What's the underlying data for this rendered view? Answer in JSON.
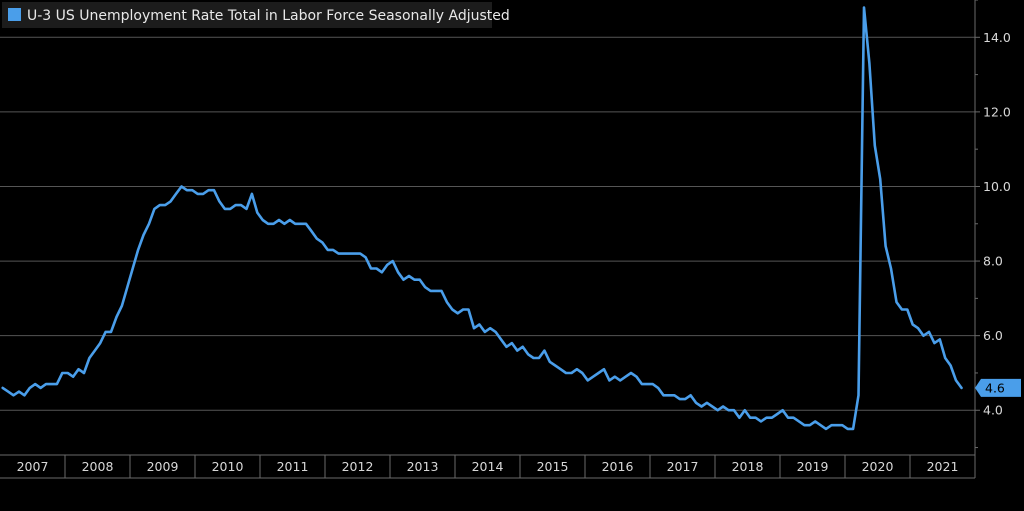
{
  "chart_data": {
    "type": "line",
    "title": "",
    "xlabel": "",
    "ylabel": "",
    "ylim": [
      2.8,
      15.0
    ],
    "xlim": [
      "2007-01",
      "2021-12"
    ],
    "grid": true,
    "legend_position": "top-left",
    "line_color": "#4a9eea",
    "background_color": "#000000",
    "x_tick_labels": [
      "2007",
      "2008",
      "2009",
      "2010",
      "2011",
      "2012",
      "2013",
      "2014",
      "2015",
      "2016",
      "2017",
      "2018",
      "2019",
      "2020",
      "2021"
    ],
    "y_tick_labels": [
      "4.0",
      "6.0",
      "8.0",
      "10.0",
      "12.0",
      "14.0"
    ],
    "y_tick_values": [
      4.0,
      6.0,
      8.0,
      10.0,
      12.0,
      14.0
    ],
    "last_value_label": "4.6",
    "series": [
      {
        "name": "U-3 US Unemployment Rate Total in Labor Force Seasonally Adjusted",
        "x": [
          "2007-01",
          "2007-02",
          "2007-03",
          "2007-04",
          "2007-05",
          "2007-06",
          "2007-07",
          "2007-08",
          "2007-09",
          "2007-10",
          "2007-11",
          "2007-12",
          "2008-01",
          "2008-02",
          "2008-03",
          "2008-04",
          "2008-05",
          "2008-06",
          "2008-07",
          "2008-08",
          "2008-09",
          "2008-10",
          "2008-11",
          "2008-12",
          "2009-01",
          "2009-02",
          "2009-03",
          "2009-04",
          "2009-05",
          "2009-06",
          "2009-07",
          "2009-08",
          "2009-09",
          "2009-10",
          "2009-11",
          "2009-12",
          "2010-01",
          "2010-02",
          "2010-03",
          "2010-04",
          "2010-05",
          "2010-06",
          "2010-07",
          "2010-08",
          "2010-09",
          "2010-10",
          "2010-11",
          "2010-12",
          "2011-01",
          "2011-02",
          "2011-03",
          "2011-04",
          "2011-05",
          "2011-06",
          "2011-07",
          "2011-08",
          "2011-09",
          "2011-10",
          "2011-11",
          "2011-12",
          "2012-01",
          "2012-02",
          "2012-03",
          "2012-04",
          "2012-05",
          "2012-06",
          "2012-07",
          "2012-08",
          "2012-09",
          "2012-10",
          "2012-11",
          "2012-12",
          "2013-01",
          "2013-02",
          "2013-03",
          "2013-04",
          "2013-05",
          "2013-06",
          "2013-07",
          "2013-08",
          "2013-09",
          "2013-10",
          "2013-11",
          "2013-12",
          "2014-01",
          "2014-02",
          "2014-03",
          "2014-04",
          "2014-05",
          "2014-06",
          "2014-07",
          "2014-08",
          "2014-09",
          "2014-10",
          "2014-11",
          "2014-12",
          "2015-01",
          "2015-02",
          "2015-03",
          "2015-04",
          "2015-05",
          "2015-06",
          "2015-07",
          "2015-08",
          "2015-09",
          "2015-10",
          "2015-11",
          "2015-12",
          "2016-01",
          "2016-02",
          "2016-03",
          "2016-04",
          "2016-05",
          "2016-06",
          "2016-07",
          "2016-08",
          "2016-09",
          "2016-10",
          "2016-11",
          "2016-12",
          "2017-01",
          "2017-02",
          "2017-03",
          "2017-04",
          "2017-05",
          "2017-06",
          "2017-07",
          "2017-08",
          "2017-09",
          "2017-10",
          "2017-11",
          "2017-12",
          "2018-01",
          "2018-02",
          "2018-03",
          "2018-04",
          "2018-05",
          "2018-06",
          "2018-07",
          "2018-08",
          "2018-09",
          "2018-10",
          "2018-11",
          "2018-12",
          "2019-01",
          "2019-02",
          "2019-03",
          "2019-04",
          "2019-05",
          "2019-06",
          "2019-07",
          "2019-08",
          "2019-09",
          "2019-10",
          "2019-11",
          "2019-12",
          "2020-01",
          "2020-02",
          "2020-03",
          "2020-04",
          "2020-05",
          "2020-06",
          "2020-07",
          "2020-08",
          "2020-09",
          "2020-10",
          "2020-11",
          "2020-12",
          "2021-01",
          "2021-02",
          "2021-03",
          "2021-04",
          "2021-05",
          "2021-06",
          "2021-07",
          "2021-08",
          "2021-09",
          "2021-10"
        ],
        "values": [
          4.6,
          4.5,
          4.4,
          4.5,
          4.4,
          4.6,
          4.7,
          4.6,
          4.7,
          4.7,
          4.7,
          5.0,
          5.0,
          4.9,
          5.1,
          5.0,
          5.4,
          5.6,
          5.8,
          6.1,
          6.1,
          6.5,
          6.8,
          7.3,
          7.8,
          8.3,
          8.7,
          9.0,
          9.4,
          9.5,
          9.5,
          9.6,
          9.8,
          10.0,
          9.9,
          9.9,
          9.8,
          9.8,
          9.9,
          9.9,
          9.6,
          9.4,
          9.4,
          9.5,
          9.5,
          9.4,
          9.8,
          9.3,
          9.1,
          9.0,
          9.0,
          9.1,
          9.0,
          9.1,
          9.0,
          9.0,
          9.0,
          8.8,
          8.6,
          8.5,
          8.3,
          8.3,
          8.2,
          8.2,
          8.2,
          8.2,
          8.2,
          8.1,
          7.8,
          7.8,
          7.7,
          7.9,
          8.0,
          7.7,
          7.5,
          7.6,
          7.5,
          7.5,
          7.3,
          7.2,
          7.2,
          7.2,
          6.9,
          6.7,
          6.6,
          6.7,
          6.7,
          6.2,
          6.3,
          6.1,
          6.2,
          6.1,
          5.9,
          5.7,
          5.8,
          5.6,
          5.7,
          5.5,
          5.4,
          5.4,
          5.6,
          5.3,
          5.2,
          5.1,
          5.0,
          5.0,
          5.1,
          5.0,
          4.8,
          4.9,
          5.0,
          5.1,
          4.8,
          4.9,
          4.8,
          4.9,
          5.0,
          4.9,
          4.7,
          4.7,
          4.7,
          4.6,
          4.4,
          4.4,
          4.4,
          4.3,
          4.3,
          4.4,
          4.2,
          4.1,
          4.2,
          4.1,
          4.0,
          4.1,
          4.0,
          4.0,
          3.8,
          4.0,
          3.8,
          3.8,
          3.7,
          3.8,
          3.8,
          3.9,
          4.0,
          3.8,
          3.8,
          3.7,
          3.6,
          3.6,
          3.7,
          3.6,
          3.5,
          3.6,
          3.6,
          3.6,
          3.5,
          3.5,
          4.4,
          14.8,
          13.3,
          11.1,
          10.2,
          8.4,
          7.8,
          6.9,
          6.7,
          6.7,
          6.3,
          6.2,
          6.0,
          6.1,
          5.8,
          5.9,
          5.4,
          5.2,
          4.8,
          4.6
        ]
      }
    ]
  }
}
